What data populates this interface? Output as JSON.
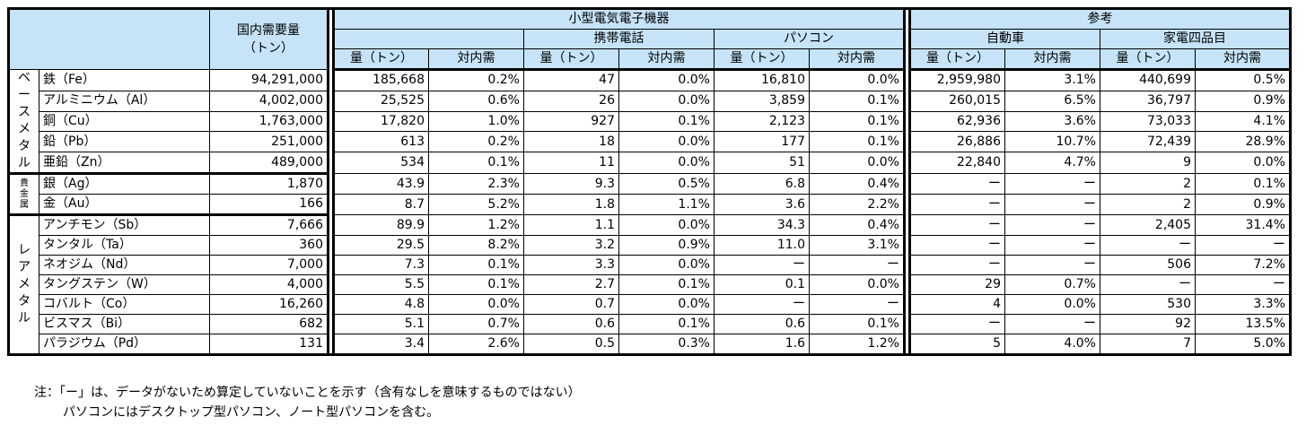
{
  "header": {
    "domestic": "国内需要量\n（トン）",
    "small_devices": "小型電気電子機器",
    "reference": "参考",
    "mobile": "携帯電話",
    "pc": "パソコン",
    "car": "自動車",
    "appliances": "家電四品目",
    "qty": "量（トン）",
    "ratio": "対内需"
  },
  "categories": {
    "base": "ベースメタル",
    "precious": "貴金属",
    "rare": "レアメタル"
  },
  "rows": [
    {
      "metal": "鉄（Fe）",
      "domestic": "94,291,000",
      "small_q": "185,668",
      "small_r": "0.2%",
      "mob_q": "47",
      "mob_r": "0.0%",
      "pc_q": "16,810",
      "pc_r": "0.0%",
      "car_q": "2,959,980",
      "car_r": "3.1%",
      "app_q": "440,699",
      "app_r": "0.5%"
    },
    {
      "metal": "アルミニウム（Al）",
      "domestic": "4,002,000",
      "small_q": "25,525",
      "small_r": "0.6%",
      "mob_q": "26",
      "mob_r": "0.0%",
      "pc_q": "3,859",
      "pc_r": "0.1%",
      "car_q": "260,015",
      "car_r": "6.5%",
      "app_q": "36,797",
      "app_r": "0.9%"
    },
    {
      "metal": "銅（Cu）",
      "domestic": "1,763,000",
      "small_q": "17,820",
      "small_r": "1.0%",
      "mob_q": "927",
      "mob_r": "0.1%",
      "pc_q": "2,123",
      "pc_r": "0.1%",
      "car_q": "62,936",
      "car_r": "3.6%",
      "app_q": "73,033",
      "app_r": "4.1%"
    },
    {
      "metal": "鉛（Pb）",
      "domestic": "251,000",
      "small_q": "613",
      "small_r": "0.2%",
      "mob_q": "18",
      "mob_r": "0.0%",
      "pc_q": "177",
      "pc_r": "0.1%",
      "car_q": "26,886",
      "car_r": "10.7%",
      "app_q": "72,439",
      "app_r": "28.9%"
    },
    {
      "metal": "亜鉛（Zn）",
      "domestic": "489,000",
      "small_q": "534",
      "small_r": "0.1%",
      "mob_q": "11",
      "mob_r": "0.0%",
      "pc_q": "51",
      "pc_r": "0.0%",
      "car_q": "22,840",
      "car_r": "4.7%",
      "app_q": "9",
      "app_r": "0.0%"
    },
    {
      "metal": "銀（Ag）",
      "domestic": "1,870",
      "small_q": "43.9",
      "small_r": "2.3%",
      "mob_q": "9.3",
      "mob_r": "0.5%",
      "pc_q": "6.8",
      "pc_r": "0.4%",
      "car_q": "ー",
      "car_r": "ー",
      "app_q": "2",
      "app_r": "0.1%"
    },
    {
      "metal": "金（Au）",
      "domestic": "166",
      "small_q": "8.7",
      "small_r": "5.2%",
      "mob_q": "1.8",
      "mob_r": "1.1%",
      "pc_q": "3.6",
      "pc_r": "2.2%",
      "car_q": "ー",
      "car_r": "ー",
      "app_q": "2",
      "app_r": "0.9%"
    },
    {
      "metal": "アンチモン（Sb）",
      "domestic": "7,666",
      "small_q": "89.9",
      "small_r": "1.2%",
      "mob_q": "1.1",
      "mob_r": "0.0%",
      "pc_q": "34.3",
      "pc_r": "0.4%",
      "car_q": "ー",
      "car_r": "ー",
      "app_q": "2,405",
      "app_r": "31.4%"
    },
    {
      "metal": "タンタル（Ta）",
      "domestic": "360",
      "small_q": "29.5",
      "small_r": "8.2%",
      "mob_q": "3.2",
      "mob_r": "0.9%",
      "pc_q": "11.0",
      "pc_r": "3.1%",
      "car_q": "ー",
      "car_r": "ー",
      "app_q": "ー",
      "app_r": "ー"
    },
    {
      "metal": "ネオジム（Nd）",
      "domestic": "7,000",
      "small_q": "7.3",
      "small_r": "0.1%",
      "mob_q": "3.3",
      "mob_r": "0.0%",
      "pc_q": "ー",
      "pc_r": "ー",
      "car_q": "ー",
      "car_r": "ー",
      "app_q": "506",
      "app_r": "7.2%"
    },
    {
      "metal": "タングステン（W）",
      "domestic": "4,000",
      "small_q": "5.5",
      "small_r": "0.1%",
      "mob_q": "2.7",
      "mob_r": "0.1%",
      "pc_q": "0.1",
      "pc_r": "0.0%",
      "car_q": "29",
      "car_r": "0.7%",
      "app_q": "ー",
      "app_r": "ー"
    },
    {
      "metal": "コバルト（Co）",
      "domestic": "16,260",
      "small_q": "4.8",
      "small_r": "0.0%",
      "mob_q": "0.7",
      "mob_r": "0.0%",
      "pc_q": "ー",
      "pc_r": "ー",
      "car_q": "4",
      "car_r": "0.0%",
      "app_q": "530",
      "app_r": "3.3%"
    },
    {
      "metal": "ビスマス（Bi）",
      "domestic": "682",
      "small_q": "5.1",
      "small_r": "0.7%",
      "mob_q": "0.6",
      "mob_r": "0.1%",
      "pc_q": "0.6",
      "pc_r": "0.1%",
      "car_q": "ー",
      "car_r": "ー",
      "app_q": "92",
      "app_r": "13.5%"
    },
    {
      "metal": "パラジウム（Pd）",
      "domestic": "131",
      "small_q": "3.4",
      "small_r": "2.6%",
      "mob_q": "0.5",
      "mob_r": "0.3%",
      "pc_q": "1.6",
      "pc_r": "1.2%",
      "car_q": "5",
      "car_r": "4.0%",
      "app_q": "7",
      "app_r": "5.0%"
    }
  ],
  "notes": [
    "注：「ー」は、データがないため算定していないことを示す（含有なしを意味するものではない）",
    "パソコンにはデスクトップ型パソコン、ノート型パソコンを含む。"
  ]
}
